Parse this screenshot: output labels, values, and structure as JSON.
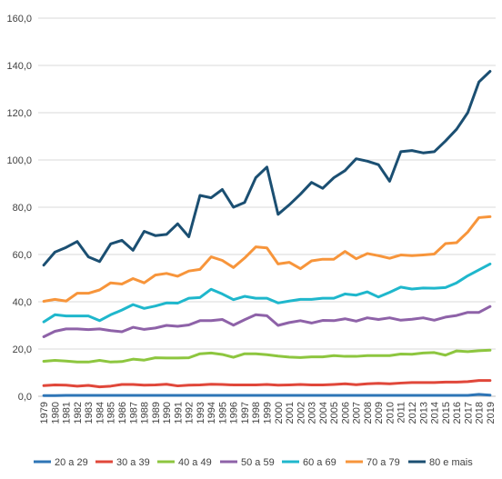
{
  "chart_data": {
    "type": "line",
    "title": "",
    "xlabel": "",
    "ylabel": "",
    "ylim": [
      0,
      160
    ],
    "yticks": [
      "0,0",
      "20,0",
      "40,0",
      "60,0",
      "80,0",
      "100,0",
      "120,0",
      "140,0",
      "160,0"
    ],
    "grid": true,
    "legend_position": "bottom",
    "categories": [
      "1979",
      "1980",
      "1981",
      "1982",
      "1983",
      "1984",
      "1985",
      "1986",
      "1987",
      "1988",
      "1989",
      "1990",
      "1991",
      "1992",
      "1993",
      "1994",
      "1995",
      "1996",
      "1997",
      "1998",
      "1999",
      "2000",
      "2001",
      "2002",
      "2003",
      "2004",
      "2005",
      "2006",
      "2007",
      "2008",
      "2009",
      "2010",
      "2011",
      "2012",
      "2013",
      "2014",
      "2015",
      "2016",
      "2017",
      "2018",
      "2019"
    ],
    "series": [
      {
        "name": "20 a 29",
        "color": "#2E75B6",
        "values": [
          0.3,
          0.3,
          0.4,
          0.4,
          0.4,
          0.4,
          0.4,
          0.4,
          0.4,
          0.4,
          0.4,
          0.4,
          0.4,
          0.4,
          0.4,
          0.4,
          0.4,
          0.4,
          0.4,
          0.4,
          0.4,
          0.4,
          0.4,
          0.4,
          0.4,
          0.4,
          0.4,
          0.4,
          0.4,
          0.4,
          0.4,
          0.4,
          0.4,
          0.4,
          0.4,
          0.4,
          0.4,
          0.4,
          0.4,
          0.8,
          0.5
        ]
      },
      {
        "name": "30 a 39",
        "color": "#E0473A",
        "values": [
          4.5,
          4.8,
          4.7,
          4.3,
          4.6,
          4.0,
          4.3,
          5.0,
          5.0,
          4.7,
          4.8,
          5.1,
          4.4,
          4.7,
          4.8,
          5.1,
          5.0,
          4.8,
          4.8,
          4.8,
          5.0,
          4.7,
          4.8,
          5.0,
          4.8,
          4.8,
          5.0,
          5.3,
          4.9,
          5.3,
          5.5,
          5.3,
          5.6,
          5.8,
          5.8,
          5.8,
          6.0,
          6.0,
          6.2,
          6.7,
          6.7
        ]
      },
      {
        "name": "40 a 49",
        "color": "#8DC63F",
        "values": [
          14.8,
          15.2,
          14.9,
          14.5,
          14.5,
          15.2,
          14.5,
          14.7,
          15.7,
          15.3,
          16.3,
          16.2,
          16.2,
          16.3,
          18.0,
          18.3,
          17.7,
          16.5,
          18.0,
          18.0,
          17.6,
          17.0,
          16.6,
          16.4,
          16.7,
          16.7,
          17.2,
          16.9,
          16.9,
          17.2,
          17.2,
          17.2,
          17.9,
          17.8,
          18.3,
          18.5,
          17.4,
          19.2,
          18.9,
          19.3,
          19.5
        ]
      },
      {
        "name": "50 a 59",
        "color": "#8E62A8",
        "values": [
          25.2,
          27.5,
          28.5,
          28.5,
          28.2,
          28.5,
          27.8,
          27.3,
          29.2,
          28.3,
          28.9,
          30.0,
          29.6,
          30.2,
          32.0,
          32.0,
          32.5,
          30.1,
          32.4,
          34.5,
          34.1,
          30.0,
          31.2,
          32.0,
          31.0,
          32.1,
          32.0,
          32.8,
          31.8,
          33.2,
          32.5,
          33.2,
          32.2,
          32.6,
          33.2,
          32.2,
          33.5,
          34.2,
          35.5,
          35.5,
          38.0
        ]
      },
      {
        "name": "60 a 69",
        "color": "#1FB7CC",
        "values": [
          31.5,
          34.5,
          34.0,
          34.0,
          34.0,
          32.0,
          34.5,
          36.5,
          38.8,
          37.2,
          38.2,
          39.5,
          39.4,
          41.5,
          41.8,
          45.3,
          43.3,
          40.9,
          42.3,
          41.5,
          41.5,
          39.5,
          40.3,
          41.0,
          41.0,
          41.5,
          41.5,
          43.3,
          42.8,
          44.2,
          42.0,
          44.0,
          46.2,
          45.4,
          45.8,
          45.7,
          46.0,
          48.0,
          51.0,
          53.5,
          56.0
        ]
      },
      {
        "name": "70 a 79",
        "color": "#F7953B",
        "values": [
          40.2,
          41.0,
          40.3,
          43.6,
          43.6,
          45.0,
          48.0,
          47.5,
          49.8,
          48.0,
          51.3,
          52.0,
          50.8,
          53.0,
          53.7,
          59.0,
          57.5,
          54.5,
          58.5,
          63.2,
          62.8,
          56.0,
          56.7,
          54.0,
          57.3,
          58.0,
          58.0,
          61.3,
          58.2,
          60.4,
          59.5,
          58.4,
          59.8,
          59.5,
          59.8,
          60.2,
          64.6,
          65.0,
          69.5,
          75.6,
          76.0
        ]
      },
      {
        "name": "80 e mais",
        "color": "#1B4F72",
        "values": [
          55.5,
          61.0,
          63.0,
          65.5,
          59.0,
          57.0,
          64.5,
          66.0,
          61.8,
          69.8,
          68.0,
          68.5,
          73.0,
          67.5,
          85.0,
          84.0,
          87.5,
          80.0,
          82.0,
          92.5,
          97.0,
          77.0,
          81.0,
          85.5,
          90.5,
          88.0,
          92.5,
          95.5,
          100.5,
          99.5,
          98.0,
          91.0,
          103.5,
          104.0,
          103.0,
          103.5,
          108.0,
          113.0,
          120.0,
          133.0,
          137.5
        ]
      }
    ]
  }
}
